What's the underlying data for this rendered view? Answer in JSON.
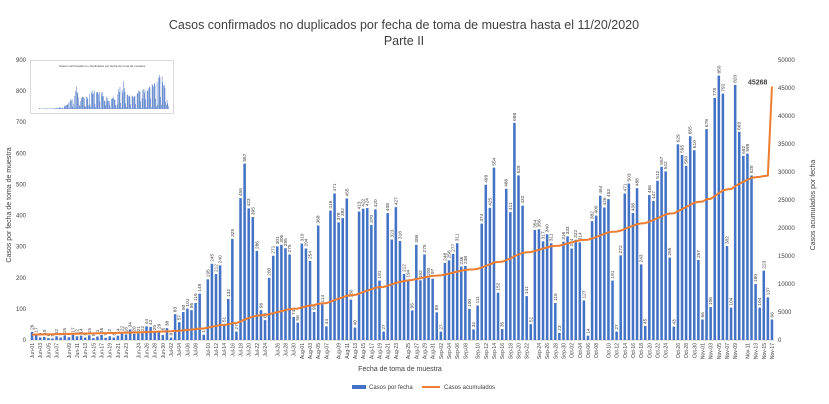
{
  "chart_data": {
    "type": "bar+line",
    "title": "Casos confirmados no duplicados por fecha de toma de muestra hasta el 11/20/2020",
    "subtitle": "Parte II",
    "xlabel": "Fecha de toma de muestra",
    "ylabel_left": "Casos por fecha de toma de muestra",
    "ylabel_right": "Casos acumulados por fecha",
    "ylim_left": [
      0,
      900
    ],
    "yticks_left": [
      0,
      100,
      200,
      300,
      400,
      500,
      600,
      700,
      800,
      900
    ],
    "ylim_right": [
      0,
      50000
    ],
    "yticks_right": [
      0,
      5000,
      10000,
      15000,
      20000,
      25000,
      30000,
      35000,
      40000,
      45000,
      50000
    ],
    "grid": false,
    "legend_position": "bottom",
    "x_tick_labels": [
      "Jun-01",
      "Jun-03",
      "Jun-05",
      "Jun-07",
      "Jun-09",
      "Jun-11",
      "Jun-13",
      "Jun-15",
      "Jun-17",
      "Jun-19",
      "Jun-21",
      "Jun-23",
      "Jun-24",
      "Jun-26",
      "Jun-28",
      "Jun-30",
      "Jul-02",
      "Jul-04",
      "Jul-06",
      "Jul-08",
      "Jul-10",
      "Jul-12",
      "Jul-14",
      "Jul-16",
      "Jul-18",
      "Jul-20",
      "Jul-22",
      "Jul-24",
      "Jul-26",
      "Jul-28",
      "Jul-30",
      "Aug-01",
      "Aug-03",
      "Aug-05",
      "Aug-07",
      "Aug-09",
      "Aug-11",
      "Aug-13",
      "Aug-15",
      "Aug-17",
      "Aug-19",
      "Aug-21",
      "Aug-23",
      "Aug-25",
      "Aug-27",
      "Aug-29",
      "Aug-31",
      "Sep-02",
      "Sep-04",
      "Sep-06",
      "Sep-08",
      "Sep-10",
      "Sep-12",
      "Sep-14",
      "Sep-16",
      "Sep-18",
      "Sep-20",
      "Sep-22",
      "Sep-24",
      "Sep-26",
      "Sep-28",
      "Sep-30",
      "Oct-02",
      "Oct-04",
      "Oct-06",
      "Oct-08",
      "Oct-10",
      "Oct-12",
      "Oct-14",
      "Oct-16",
      "Oct-18",
      "Oct-20",
      "Oct-22",
      "Oct-24",
      "Oct-26",
      "Oct-28",
      "Oct-30",
      "Nov-01",
      "Nov-03",
      "Nov-05",
      "Nov-07",
      "Nov-09",
      "Nov-11",
      "Nov-13",
      "Nov-15",
      "Nov-17"
    ],
    "series": [
      {
        "name": "Casos por fecha",
        "type": "bar",
        "color": "#4472c4",
        "values": [
          26,
          17,
          8,
          10,
          6,
          5,
          12,
          8,
          15,
          9,
          17,
          12,
          14,
          8,
          15,
          6,
          11,
          16,
          7,
          12,
          8,
          14,
          22,
          18,
          34,
          20,
          21,
          22,
          44,
          42,
          25,
          29,
          16,
          38,
          8,
          83,
          57,
          90,
          101,
          96,
          119,
          149,
          17,
          195,
          245,
          212,
          240,
          51,
          132,
          325,
          27,
          456,
          567,
          423,
          395,
          286,
          96,
          64,
          200,
          271,
          301,
          306,
          295,
          275,
          74,
          56,
          310,
          294,
          254,
          90,
          368,
          114,
          44,
          416,
          471,
          378,
          392,
          455,
          130,
          40,
          413,
          422,
          424,
          370,
          420,
          191,
          27,
          408,
          323,
          427,
          318,
          212,
          194,
          95,
          306,
          192,
          275,
          200,
          197,
          89,
          27,
          248,
          256,
          277,
          311,
          236,
          238,
          100,
          34,
          111,
          374,
          499,
          425,
          554,
          152,
          35,
          486,
          411,
          698,
          529,
          432,
          141,
          51,
          354,
          356,
          317,
          340,
          311,
          119,
          23,
          316,
          333,
          294,
          322,
          314,
          127,
          14,
          382,
          400,
          464,
          426,
          453,
          191,
          27,
          272,
          471,
          503,
          408,
          488,
          243,
          45,
          466,
          447,
          512,
          557,
          542,
          265,
          43,
          629,
          595,
          560,
          655,
          610,
          257,
          66,
          678,
          106,
          778,
          850,
          792,
          302,
          104,
          820,
          669,
          592,
          599,
          529,
          180,
          104,
          223,
          137,
          66
        ],
        "labels": [
          "26",
          "17",
          "8",
          "10",
          "6",
          "5",
          "12",
          "8",
          "15",
          "9",
          "17",
          "12",
          "14",
          "8",
          "15",
          "6",
          "11",
          "16",
          "7",
          "12",
          "8",
          "14",
          "22",
          "18",
          "34",
          "20",
          "21",
          "22",
          "44",
          "42",
          "25",
          "29",
          "16",
          "38",
          "8",
          "83",
          "57",
          "90",
          "101",
          "96",
          "119",
          "149",
          "17",
          "195",
          "245",
          "212",
          "240",
          "51",
          "132",
          "325",
          "27",
          "456",
          "567",
          "423",
          "395",
          "286",
          "96",
          "64",
          "200",
          "271",
          "301",
          "306",
          "295",
          "275",
          "74",
          "56",
          "310",
          "294",
          "254",
          "90",
          "368",
          "114",
          "44",
          "416",
          "471",
          "378",
          "392",
          "455",
          "130",
          "40",
          "413",
          "422",
          "424",
          "370",
          "420",
          "191",
          "27",
          "408",
          "323",
          "427",
          "318",
          "212",
          "194",
          "95",
          "306",
          "192",
          "275",
          "200",
          "197",
          "89",
          "27",
          "248",
          "256",
          "277",
          "311",
          "236",
          "238",
          "100",
          "34",
          "111",
          "374",
          "499",
          "425",
          "554",
          "152",
          "35",
          "486",
          "411",
          "698",
          "529",
          "432",
          "141",
          "51",
          "354",
          "356",
          "317",
          "340",
          "311",
          "119",
          "23",
          "316",
          "333",
          "294",
          "322",
          "314",
          "127",
          "14",
          "382",
          "400",
          "464",
          "426",
          "453",
          "191",
          "27",
          "272",
          "471",
          "503",
          "408",
          "488",
          "243",
          "45",
          "466",
          "447",
          "512",
          "557",
          "542",
          "265",
          "43",
          "629",
          "595",
          "560",
          "655",
          "610",
          "257",
          "66",
          "678",
          "106",
          "778",
          "850",
          "792",
          "302",
          "104",
          "820",
          "669",
          "592",
          "599",
          "529",
          "180",
          "104",
          "223",
          "137",
          "66"
        ]
      },
      {
        "name": "Casos acumulados",
        "type": "line",
        "color": "#ed7d31",
        "axis": "right",
        "values": [
          960,
          975,
          990,
          1005,
          1020,
          1035,
          1050,
          1065,
          1080,
          1095,
          1110,
          1125,
          1140,
          1155,
          1170,
          1185,
          1200,
          1215,
          1230,
          1245,
          1260,
          1275,
          1290,
          1305,
          1330,
          1350,
          1370,
          1390,
          1420,
          1450,
          1475,
          1500,
          1520,
          1550,
          1570,
          1620,
          1660,
          1720,
          1790,
          1860,
          1940,
          2040,
          2060,
          2200,
          2360,
          2510,
          2670,
          2710,
          2800,
          3000,
          3030,
          3310,
          3650,
          3920,
          4170,
          4350,
          4420,
          4470,
          4610,
          4780,
          4970,
          5160,
          5350,
          5520,
          5570,
          5610,
          5810,
          6000,
          6160,
          6230,
          6460,
          6540,
          6580,
          6840,
          7140,
          7380,
          7630,
          7910,
          8000,
          8040,
          8300,
          8560,
          8830,
          9060,
          9320,
          9440,
          9470,
          9720,
          9920,
          10180,
          10380,
          10520,
          10640,
          10710,
          10900,
          11020,
          11190,
          11320,
          11440,
          11500,
          11530,
          11690,
          11850,
          12020,
          12210,
          12360,
          12510,
          12580,
          12620,
          12700,
          12930,
          13240,
          13500,
          13840,
          13940,
          13970,
          14270,
          14530,
          14960,
          15290,
          15560,
          15650,
          15690,
          15910,
          16130,
          16330,
          16540,
          16730,
          16810,
          16830,
          17030,
          17240,
          17420,
          17620,
          17810,
          17890,
          17900,
          18140,
          18390,
          18680,
          18940,
          19220,
          19340,
          19360,
          19530,
          19820,
          20130,
          20380,
          20680,
          20830,
          20860,
          21150,
          21420,
          21740,
          22080,
          22420,
          22580,
          22610,
          23000,
          23370,
          23720,
          24130,
          24510,
          24670,
          24710,
          25130,
          25200,
          25680,
          26210,
          26700,
          26890,
          26960,
          27470,
          27880,
          28250,
          28620,
          28950,
          29060,
          29130,
          29270,
          29360,
          45268
        ]
      }
    ],
    "annotations": [
      "45268"
    ]
  },
  "legend": {
    "bar_label": "Casos por fecha",
    "line_label": "Casos acumulados"
  },
  "inset": {
    "title": "Casos confirmados no duplicados por fecha de toma de muestra"
  }
}
